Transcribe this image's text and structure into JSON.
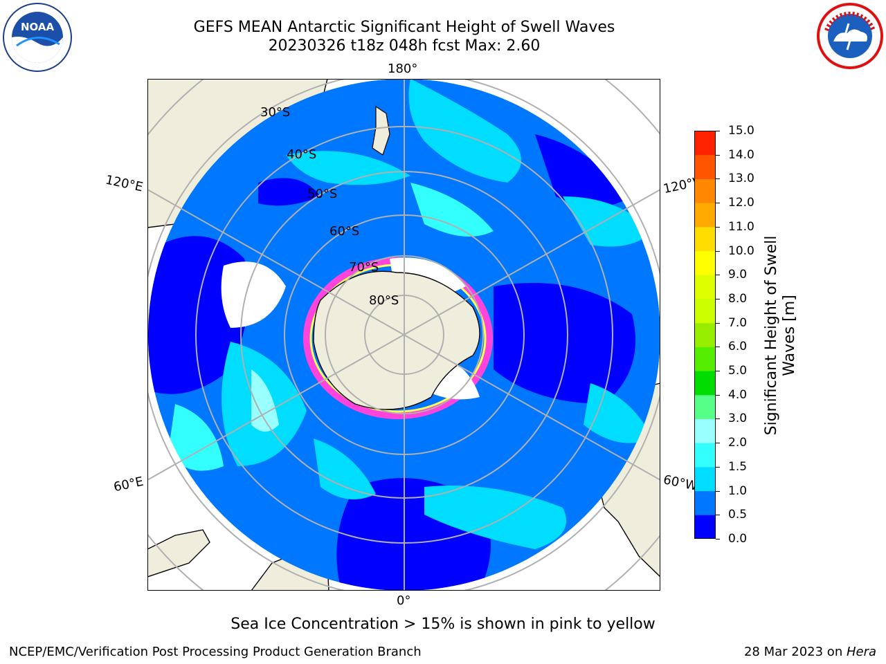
{
  "header": {
    "title_line1": "GEFS MEAN Antarctic Significant Height of Swell Waves",
    "title_line2": "20230326 t18z 048h fcst   Max: 2.60"
  },
  "logos": {
    "left": {
      "icon": "noaa-logo",
      "text": "NOAA"
    },
    "right": {
      "icon": "national-weather-service-logo"
    }
  },
  "map": {
    "projection": "south polar stereographic",
    "longitude_labels": [
      "180°",
      "120°E",
      "120°W",
      "60°E",
      "60°W",
      "0°"
    ],
    "latitude_labels": [
      "30°S",
      "40°S",
      "50°S",
      "60°S",
      "70°S",
      "80°S"
    ],
    "colors": {
      "land": "#efeedd",
      "ice_shelf": "#ffffff",
      "sea_ice": "#ff44dd",
      "grid": "#b0b0b0"
    }
  },
  "colorbar": {
    "label": "Significant Height of Swell Waves [m]",
    "ticks": [
      "0.0",
      "0.5",
      "1.0",
      "1.5",
      "2.0",
      "3.0",
      "4.0",
      "5.0",
      "6.0",
      "7.0",
      "8.0",
      "9.0",
      "10.0",
      "11.0",
      "12.0",
      "13.0",
      "14.0",
      "15.0"
    ],
    "colors": [
      "#0000ff",
      "#0077ff",
      "#00ddff",
      "#33ffff",
      "#99ffff",
      "#55ff88",
      "#00dd00",
      "#55ee00",
      "#99ee00",
      "#ccff00",
      "#ddff00",
      "#ffff00",
      "#ffdd00",
      "#ffaa00",
      "#ff8800",
      "#ff5500",
      "#ff2200"
    ]
  },
  "footer": {
    "note": "Sea Ice Concentration > 15% is shown in pink to yellow",
    "left": "NCEP/EMC/Verification Post Processing Product Generation Branch",
    "right_prefix": "28 Mar 2023 on ",
    "right_host": "Hera"
  }
}
